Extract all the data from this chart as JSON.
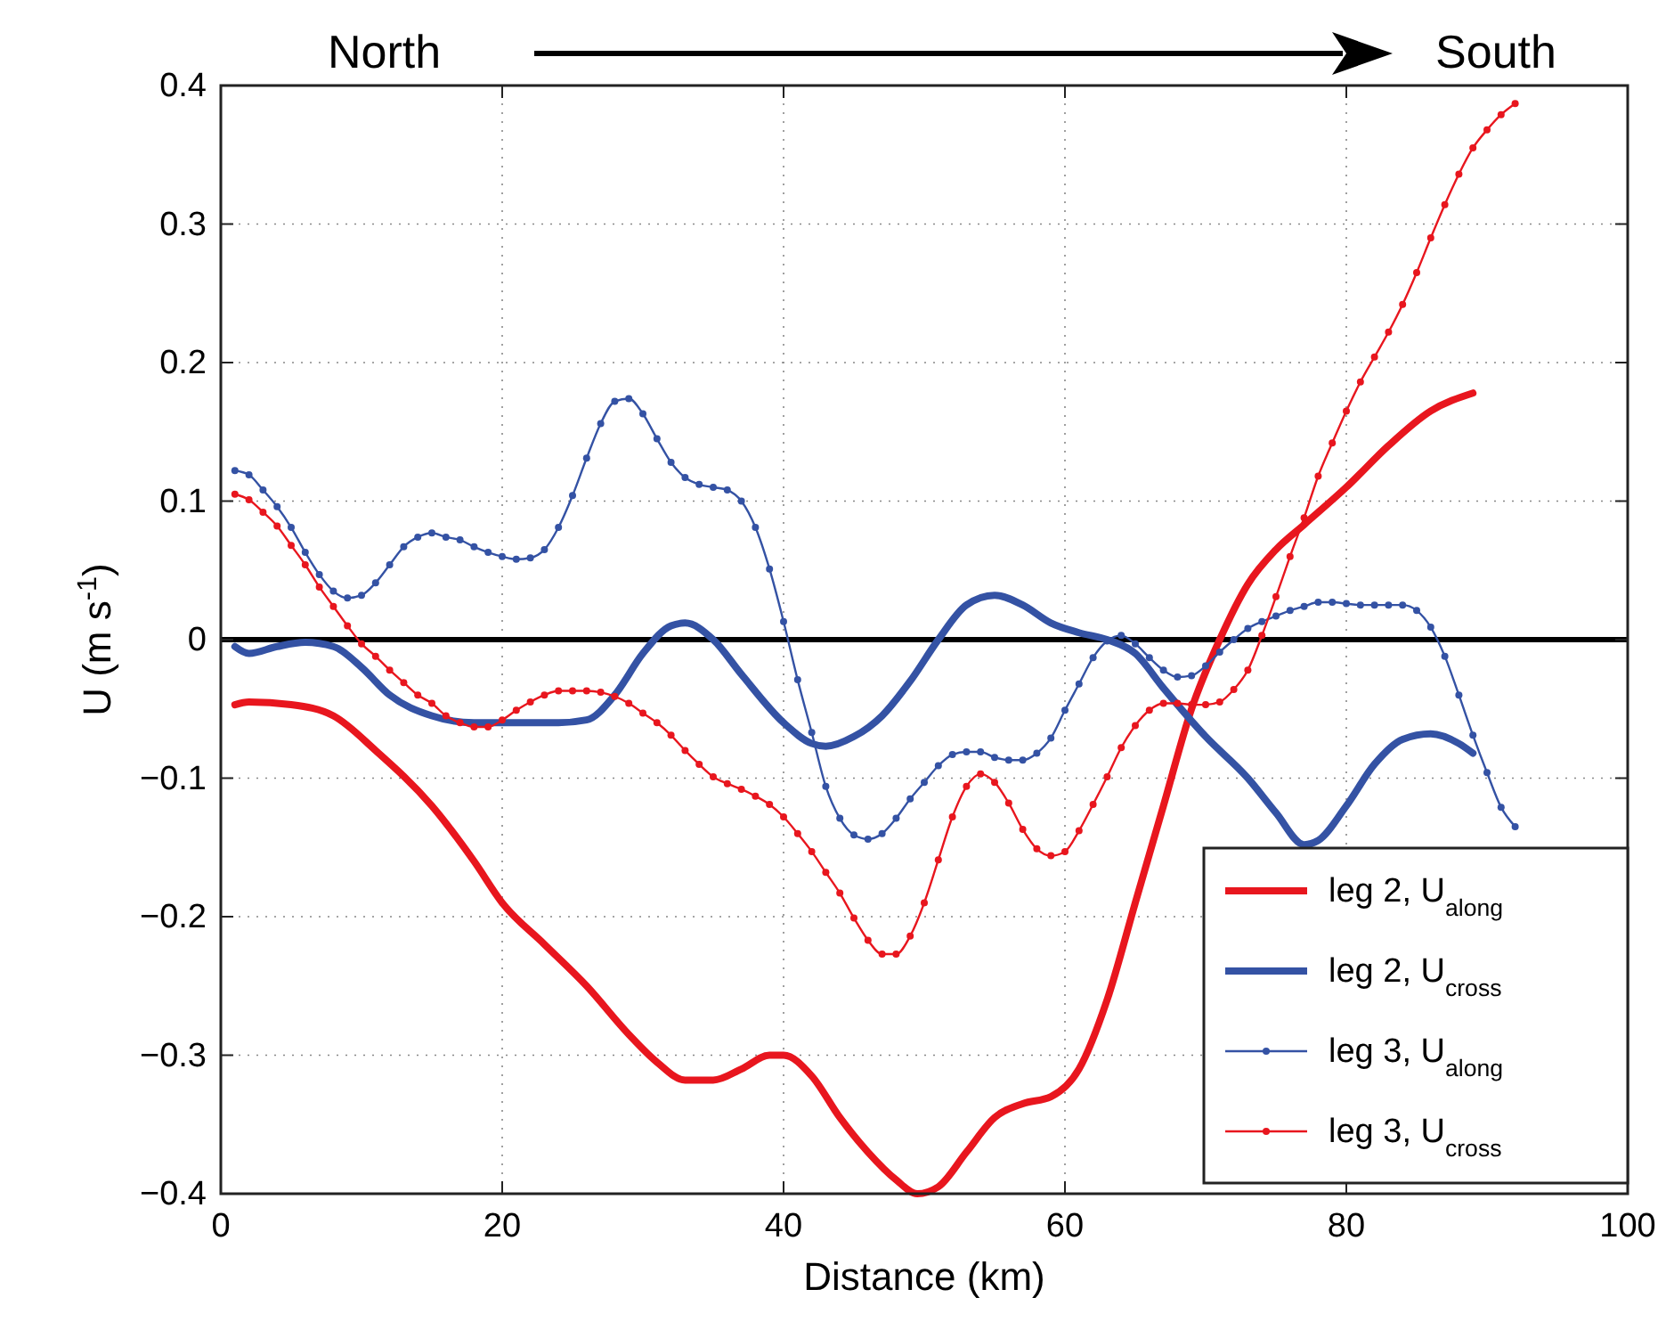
{
  "chart_data": {
    "type": "line",
    "xlabel": "Distance (km)",
    "ylabel": "U (m s$^{-1}$)",
    "annotations": [
      "North",
      "South"
    ],
    "xlim": [
      0,
      100
    ],
    "xticks": [
      0,
      20,
      40,
      60,
      80,
      100
    ],
    "ylim": [
      -0.4,
      0.4
    ],
    "yticks": [
      {
        "value": -0.4,
        "label": "−0.4"
      },
      {
        "value": -0.3,
        "label": "−0.3"
      },
      {
        "value": -0.2,
        "label": "−0.2"
      },
      {
        "value": -0.1,
        "label": "−0.1"
      },
      0,
      0.1,
      0.2,
      0.3,
      0.4
    ],
    "grid": true,
    "legend": "bottom right",
    "line_style": "solid",
    "ref_lines": [
      {
        "axis": "y",
        "value": 0,
        "color": "#000000"
      }
    ],
    "series": [
      {
        "name": "leg 2, U$_{along}$",
        "color": "#e8161e",
        "marker": "none",
        "x": [
          1,
          2,
          5,
          8,
          11,
          15,
          18,
          20,
          23,
          26,
          29,
          31,
          33,
          35,
          37,
          39,
          40,
          42,
          44,
          46,
          48,
          49.5,
          51,
          53,
          55,
          57,
          59,
          61,
          63,
          65,
          67,
          69,
          71,
          73,
          75,
          77,
          80,
          83,
          86,
          89
        ],
        "values": [
          -0.047,
          -0.045,
          -0.047,
          -0.055,
          -0.08,
          -0.12,
          -0.16,
          -0.19,
          -0.22,
          -0.25,
          -0.285,
          -0.305,
          -0.318,
          -0.318,
          -0.31,
          -0.3,
          -0.3,
          -0.315,
          -0.345,
          -0.37,
          -0.39,
          -0.4,
          -0.395,
          -0.37,
          -0.345,
          -0.335,
          -0.33,
          -0.31,
          -0.26,
          -0.19,
          -0.12,
          -0.05,
          0.0,
          0.04,
          0.065,
          0.083,
          0.11,
          0.14,
          0.165,
          0.178
        ]
      },
      {
        "name": "leg 2, U$_{cross}$",
        "color": "#3452a4",
        "marker": "none",
        "x": [
          1,
          2,
          4,
          6,
          8,
          10,
          12,
          15,
          18,
          21,
          24,
          26,
          28,
          30,
          32,
          33,
          35,
          37,
          40,
          42,
          43,
          45,
          47,
          49,
          51,
          53,
          55,
          57,
          59,
          61,
          63,
          65,
          67,
          70,
          73,
          75,
          77,
          78,
          80,
          82,
          84,
          86,
          88,
          89
        ],
        "values": [
          -0.005,
          -0.01,
          -0.005,
          -0.002,
          -0.005,
          -0.02,
          -0.04,
          -0.055,
          -0.06,
          -0.06,
          -0.06,
          -0.058,
          -0.04,
          -0.01,
          0.01,
          0.012,
          0.0,
          -0.025,
          -0.06,
          -0.075,
          -0.077,
          -0.07,
          -0.055,
          -0.03,
          0.0,
          0.025,
          0.032,
          0.025,
          0.012,
          0.005,
          0.0,
          -0.01,
          -0.035,
          -0.07,
          -0.1,
          -0.125,
          -0.148,
          -0.145,
          -0.12,
          -0.09,
          -0.072,
          -0.068,
          -0.075,
          -0.082
        ]
      },
      {
        "name": "leg 3, U$_{along}$",
        "color": "#3452a4",
        "marker": "circle",
        "x": [
          1,
          2,
          3,
          4,
          5,
          6,
          7,
          8,
          9,
          10,
          11,
          12,
          13,
          14,
          15,
          16,
          17,
          18,
          19,
          20,
          21,
          22,
          23,
          24,
          25,
          26,
          27,
          28,
          29,
          30,
          31,
          32,
          33,
          34,
          35,
          36,
          37,
          38,
          39,
          40,
          41,
          42,
          43,
          44,
          45,
          46,
          47,
          48,
          49,
          50,
          51,
          52,
          53,
          54,
          55,
          56,
          57,
          58,
          59,
          60,
          61,
          62,
          63,
          64,
          65,
          66,
          67,
          68,
          69,
          70,
          71,
          72,
          73,
          74,
          75,
          76,
          77,
          78,
          79,
          80,
          81,
          82,
          83,
          84,
          85,
          86,
          87,
          88,
          89,
          90,
          91,
          92
        ],
        "values": [
          0.122,
          0.119,
          0.108,
          0.096,
          0.081,
          0.063,
          0.047,
          0.035,
          0.03,
          0.032,
          0.041,
          0.054,
          0.067,
          0.074,
          0.077,
          0.074,
          0.072,
          0.067,
          0.063,
          0.06,
          0.058,
          0.059,
          0.065,
          0.081,
          0.104,
          0.131,
          0.156,
          0.172,
          0.174,
          0.163,
          0.145,
          0.128,
          0.117,
          0.112,
          0.11,
          0.108,
          0.1,
          0.081,
          0.051,
          0.013,
          -0.029,
          -0.067,
          -0.106,
          -0.129,
          -0.141,
          -0.144,
          -0.14,
          -0.129,
          -0.115,
          -0.103,
          -0.091,
          -0.083,
          -0.081,
          -0.081,
          -0.085,
          -0.087,
          -0.087,
          -0.082,
          -0.071,
          -0.051,
          -0.032,
          -0.013,
          -0.001,
          0.003,
          -0.003,
          -0.013,
          -0.022,
          -0.027,
          -0.026,
          -0.019,
          -0.009,
          0.0,
          0.008,
          0.013,
          0.017,
          0.021,
          0.024,
          0.027,
          0.027,
          0.026,
          0.025,
          0.025,
          0.025,
          0.025,
          0.021,
          0.009,
          -0.012,
          -0.04,
          -0.069,
          -0.096,
          -0.121,
          -0.135
        ]
      },
      {
        "name": "leg 3, U$_{cross}$",
        "color": "#e8161e",
        "marker": "circle",
        "x": [
          1,
          2,
          3,
          4,
          5,
          6,
          7,
          8,
          9,
          10,
          11,
          12,
          13,
          14,
          15,
          16,
          17,
          18,
          19,
          20,
          21,
          22,
          23,
          24,
          25,
          26,
          27,
          28,
          29,
          30,
          31,
          32,
          33,
          34,
          35,
          36,
          37,
          38,
          39,
          40,
          41,
          42,
          43,
          44,
          45,
          46,
          47,
          48,
          49,
          50,
          51,
          52,
          53,
          54,
          55,
          56,
          57,
          58,
          59,
          60,
          61,
          62,
          63,
          64,
          65,
          66,
          67,
          68,
          69,
          70,
          71,
          72,
          73,
          74,
          75,
          76,
          77,
          78,
          79,
          80,
          81,
          82,
          83,
          84,
          85,
          86,
          87,
          88,
          89,
          90,
          91,
          92
        ],
        "values": [
          0.105,
          0.101,
          0.092,
          0.082,
          0.068,
          0.054,
          0.038,
          0.024,
          0.01,
          -0.003,
          -0.012,
          -0.022,
          -0.031,
          -0.04,
          -0.046,
          -0.055,
          -0.06,
          -0.063,
          -0.063,
          -0.058,
          -0.051,
          -0.045,
          -0.04,
          -0.037,
          -0.037,
          -0.037,
          -0.038,
          -0.041,
          -0.046,
          -0.053,
          -0.06,
          -0.069,
          -0.08,
          -0.09,
          -0.099,
          -0.104,
          -0.108,
          -0.113,
          -0.119,
          -0.128,
          -0.14,
          -0.153,
          -0.168,
          -0.183,
          -0.201,
          -0.217,
          -0.227,
          -0.227,
          -0.214,
          -0.19,
          -0.159,
          -0.128,
          -0.106,
          -0.097,
          -0.103,
          -0.118,
          -0.137,
          -0.151,
          -0.156,
          -0.153,
          -0.138,
          -0.119,
          -0.099,
          -0.078,
          -0.062,
          -0.051,
          -0.046,
          -0.046,
          -0.047,
          -0.047,
          -0.045,
          -0.036,
          -0.022,
          0.003,
          0.031,
          0.06,
          0.088,
          0.118,
          0.142,
          0.165,
          0.186,
          0.204,
          0.222,
          0.242,
          0.265,
          0.29,
          0.314,
          0.336,
          0.355,
          0.368,
          0.379,
          0.387
        ]
      }
    ]
  }
}
